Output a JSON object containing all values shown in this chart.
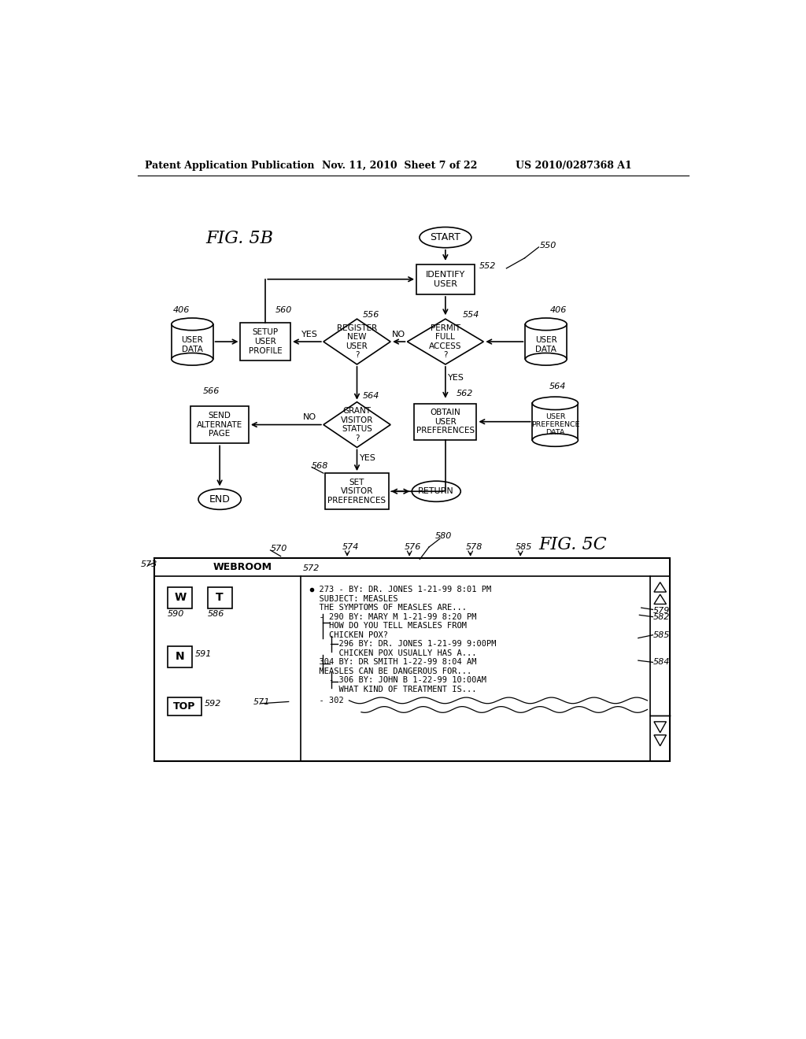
{
  "bg_color": "#ffffff",
  "header_left": "Patent Application Publication",
  "header_mid": "Nov. 11, 2010  Sheet 7 of 22",
  "header_right": "US 2010/0287368 A1"
}
